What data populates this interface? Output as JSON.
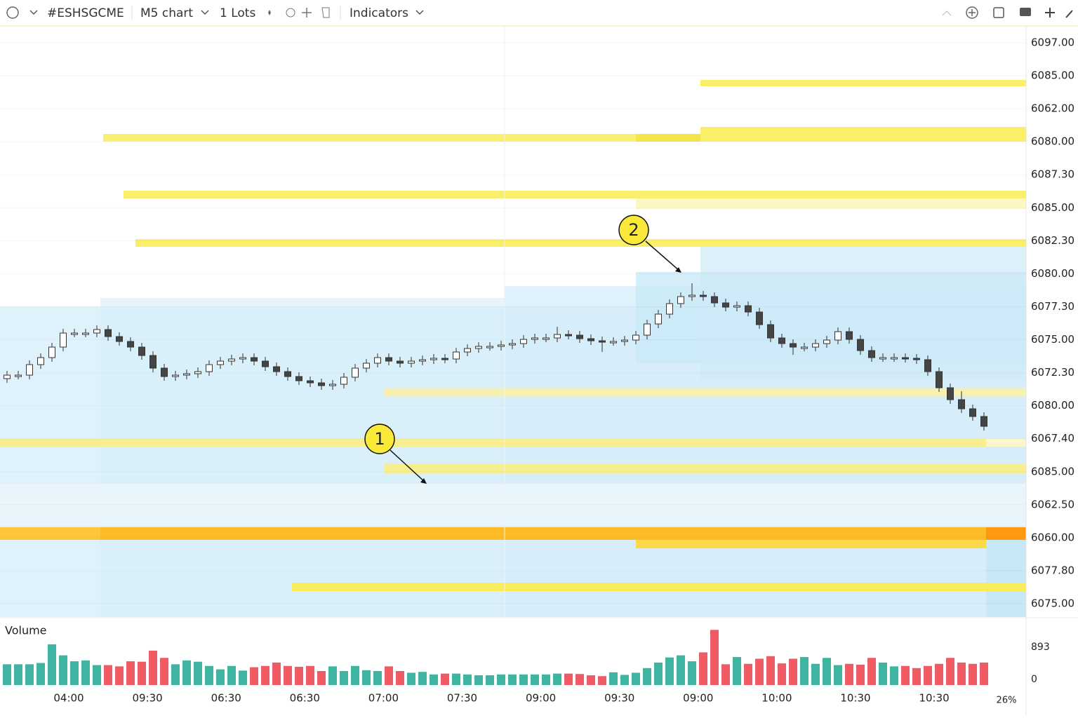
{
  "toolbar": {
    "symbol": "#ESHSGCME",
    "timeframe": "M5 chart",
    "lots": "1 Lots",
    "indicators": "Indicators"
  },
  "chart_data": {
    "type": "candlestick",
    "ylim": [
      6058,
      6100
    ],
    "price_labels": [
      "6097.00",
      "6085.00",
      "6062.00",
      "6080.00",
      "6087.30",
      "6085.00",
      "6082.30",
      "6080.00",
      "6077.30",
      "6075.00",
      "6072.30",
      "6080.00",
      "6067.40",
      "6085.00",
      "6062.50",
      "6060.00",
      "6077.80",
      "6075.00"
    ],
    "time_labels": [
      "04:00",
      "09:30",
      "06:30",
      "06:30",
      "07:00",
      "07:30",
      "09:00",
      "09:30",
      "09:00",
      "10:00",
      "10:30",
      "10:30"
    ],
    "up_color": "#ffffff",
    "down_color": "#454545",
    "wick_color": "#333333",
    "open": [
      6074.9,
      6075.15,
      6075.15,
      6075.9,
      6076.4,
      6077.15,
      6078.15,
      6078.15,
      6078.15,
      6078.4,
      6077.9,
      6077.55,
      6077.15,
      6076.55,
      6075.65,
      6075.05,
      6075.15,
      6075.25,
      6075.4,
      6075.9,
      6076.15,
      6076.3,
      6076.4,
      6076.15,
      6075.75,
      6075.4,
      6075.05,
      6074.75,
      6074.6,
      6074.4,
      6074.5,
      6075.0,
      6075.65,
      6076.0,
      6076.4,
      6076.15,
      6076.0,
      6076.15,
      6076.25,
      6076.35,
      6076.3,
      6076.8,
      6077.05,
      6077.2,
      6077.2,
      6077.3,
      6077.4,
      6077.7,
      6077.8,
      6077.8,
      6078.05,
      6078.0,
      6077.75,
      6077.6,
      6077.55,
      6077.55,
      6077.65,
      6078.0,
      6078.8,
      6079.5,
      6080.25,
      6080.75,
      6080.85,
      6080.75,
      6080.3,
      6080.0,
      6080.1,
      6079.65,
      6078.75,
      6077.8,
      6077.4,
      6077.15,
      6077.15,
      6077.4,
      6077.65,
      6078.25,
      6077.7,
      6076.9,
      6076.4,
      6076.4,
      6076.4,
      6076.35,
      6076.25,
      6075.4,
      6074.25,
      6073.4,
      6072.75,
      6072.2
    ],
    "close": [
      6075.15,
      6075.15,
      6075.9,
      6076.4,
      6077.15,
      6078.15,
      6078.15,
      6078.15,
      6078.4,
      6077.9,
      6077.55,
      6077.15,
      6076.55,
      6075.65,
      6075.05,
      6075.15,
      6075.25,
      6075.4,
      6075.9,
      6076.15,
      6076.3,
      6076.4,
      6076.15,
      6075.75,
      6075.4,
      6075.05,
      6074.75,
      6074.6,
      6074.4,
      6074.5,
      6075.0,
      6075.65,
      6076.0,
      6076.4,
      6076.15,
      6076.0,
      6076.15,
      6076.25,
      6076.35,
      6076.3,
      6076.8,
      6077.05,
      6077.2,
      6077.2,
      6077.3,
      6077.4,
      6077.7,
      6077.8,
      6077.8,
      6078.05,
      6078.0,
      6077.75,
      6077.6,
      6077.55,
      6077.55,
      6077.65,
      6078.0,
      6078.8,
      6079.5,
      6080.25,
      6080.75,
      6080.85,
      6080.75,
      6080.3,
      6080.0,
      6080.1,
      6079.65,
      6078.75,
      6077.8,
      6077.4,
      6077.15,
      6077.15,
      6077.4,
      6077.65,
      6078.25,
      6077.7,
      6076.9,
      6076.4,
      6076.4,
      6076.4,
      6076.35,
      6076.25,
      6075.4,
      6074.25,
      6073.4,
      6072.75,
      6072.2,
      6071.5
    ],
    "high": [
      6075.45,
      6075.45,
      6076.2,
      6076.7,
      6077.45,
      6078.45,
      6078.45,
      6078.45,
      6078.7,
      6078.7,
      6078.2,
      6077.85,
      6077.45,
      6076.85,
      6075.95,
      6075.45,
      6075.55,
      6075.7,
      6076.2,
      6076.45,
      6076.6,
      6076.7,
      6076.7,
      6076.45,
      6076.05,
      6075.7,
      6075.35,
      6075.05,
      6074.9,
      6074.8,
      6075.3,
      6075.95,
      6076.3,
      6076.7,
      6076.7,
      6076.45,
      6076.45,
      6076.55,
      6076.65,
      6076.65,
      6077.1,
      6077.35,
      6077.5,
      6077.5,
      6077.6,
      6077.7,
      6078.0,
      6078.1,
      6078.1,
      6078.6,
      6078.35,
      6078.3,
      6078.05,
      6077.9,
      6077.85,
      6077.95,
      6078.3,
      6079.1,
      6079.8,
      6080.55,
      6081.05,
      6081.7,
      6081.15,
      6081.05,
      6080.6,
      6080.4,
      6080.4,
      6079.95,
      6079.05,
      6078.1,
      6077.7,
      6077.45,
      6077.7,
      6077.95,
      6078.55,
      6078.55,
      6078.0,
      6077.2,
      6076.7,
      6076.7,
      6076.7,
      6076.65,
      6076.55,
      6075.7,
      6074.55,
      6074.0,
      6073.05,
      6072.5
    ],
    "low": [
      6074.6,
      6074.85,
      6074.85,
      6075.6,
      6076.1,
      6076.85,
      6077.85,
      6077.85,
      6077.85,
      6077.6,
      6077.25,
      6076.85,
      6076.25,
      6075.35,
      6074.75,
      6074.75,
      6074.85,
      6074.95,
      6075.1,
      6075.6,
      6075.85,
      6076.0,
      6075.85,
      6075.45,
      6075.1,
      6074.75,
      6074.45,
      6074.3,
      6074.1,
      6074.1,
      6074.2,
      6074.7,
      6075.35,
      6075.7,
      6075.85,
      6075.7,
      6075.7,
      6075.85,
      6075.95,
      6076.0,
      6076.0,
      6076.5,
      6076.75,
      6076.9,
      6076.9,
      6077.0,
      6077.1,
      6077.4,
      6077.5,
      6077.5,
      6077.7,
      6077.45,
      6077.3,
      6076.8,
      6077.25,
      6077.25,
      6077.35,
      6077.7,
      6078.5,
      6079.2,
      6079.95,
      6080.45,
      6080.45,
      6080.0,
      6079.7,
      6079.7,
      6079.35,
      6078.45,
      6077.5,
      6077.1,
      6076.6,
      6076.85,
      6076.85,
      6077.1,
      6077.35,
      6077.4,
      6076.6,
      6076.1,
      6076.1,
      6076.1,
      6076.05,
      6075.95,
      6075.1,
      6073.95,
      6073.1,
      6072.45,
      6071.9,
      6071.2
    ],
    "volume": {
      "title": "Volume",
      "ylim": [
        0,
        1520
      ],
      "yticks": [
        893,
        0
      ],
      "up_color": "#3db5a0",
      "down_color": "#ef5b64",
      "values": [
        490,
        490,
        490,
        520,
        960,
        700,
        560,
        580,
        470,
        470,
        440,
        560,
        550,
        810,
        640,
        490,
        580,
        550,
        450,
        370,
        450,
        340,
        420,
        450,
        530,
        450,
        430,
        450,
        330,
        440,
        330,
        450,
        350,
        330,
        440,
        330,
        290,
        310,
        250,
        270,
        270,
        250,
        230,
        230,
        250,
        250,
        250,
        250,
        250,
        270,
        270,
        260,
        230,
        210,
        300,
        240,
        290,
        400,
        530,
        650,
        700,
        560,
        770,
        1300,
        490,
        660,
        500,
        620,
        680,
        510,
        620,
        660,
        500,
        640,
        470,
        500,
        480,
        640,
        530,
        440,
        450,
        400,
        450,
        500,
        640,
        530,
        500,
        530
      ]
    },
    "annotations": [
      "1",
      "2"
    ],
    "zoom": "26%"
  }
}
